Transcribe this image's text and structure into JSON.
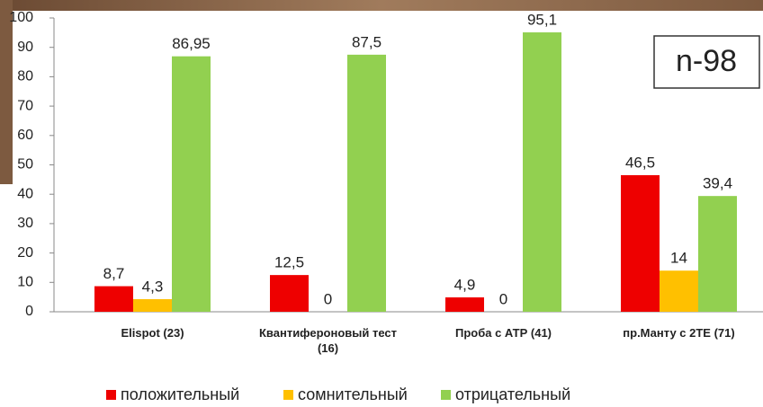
{
  "chart_data": {
    "type": "bar",
    "annotation": "n-98",
    "categories": [
      "Elispot (23)",
      "Квантифероновый тест (16)",
      "Проба с АТР (41)",
      "пр.Манту с 2ТЕ (71)"
    ],
    "series": [
      {
        "name": "положительный",
        "color": "#ee0000",
        "values": [
          8.7,
          12.5,
          4.9,
          46.5
        ],
        "value_labels": [
          "8,7",
          "12,5",
          "4,9",
          "46,5"
        ]
      },
      {
        "name": "сомнительный",
        "color": "#ffc000",
        "values": [
          4.3,
          0,
          0,
          14
        ],
        "value_labels": [
          "4,3",
          "0",
          "0",
          "14"
        ]
      },
      {
        "name": "отрицательный",
        "color": "#92d050",
        "values": [
          86.95,
          87.5,
          95.1,
          39.4
        ],
        "value_labels": [
          "86,95",
          "87,5",
          "95,1",
          "39,4"
        ]
      }
    ],
    "ylim": [
      0,
      100
    ],
    "yticks": [
      0,
      10,
      20,
      30,
      40,
      50,
      60,
      70,
      80,
      90,
      100
    ],
    "grid": false,
    "legend": "bottom"
  }
}
